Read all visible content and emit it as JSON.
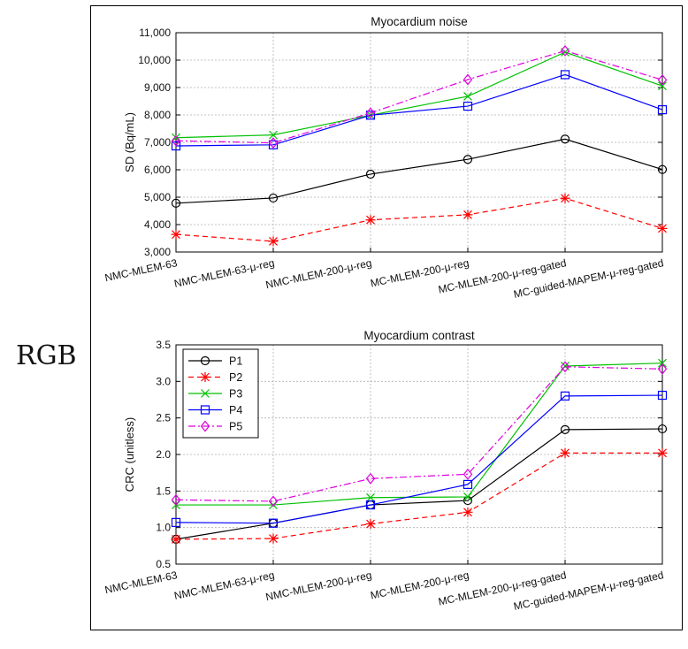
{
  "side_label": "RGB",
  "chart_data": [
    {
      "type": "line",
      "title": "Myocardium noise",
      "xlabel": "",
      "ylabel": "SD (Bq/mL)",
      "categories": [
        "NMC-MLEM-63",
        "NMC-MLEM-63-μ-reg",
        "NMC-MLEM-200-μ-reg",
        "MC-MLEM-200-μ-reg",
        "MC-MLEM-200-μ-reg-gated",
        "MC-guided-MAPEM-μ-reg-gated"
      ],
      "ylim": [
        3000,
        11000
      ],
      "yticks": [
        3000,
        4000,
        5000,
        6000,
        7000,
        8000,
        9000,
        10000,
        11000
      ],
      "ytick_labels": [
        "3,000",
        "4,000",
        "5,000",
        "6,000",
        "7,000",
        "8,000",
        "9,000",
        "10,000",
        "11,000"
      ],
      "grid": true,
      "legend": "none",
      "series": [
        {
          "name": "P1",
          "values": [
            4780,
            4970,
            5840,
            6380,
            7120,
            6010
          ]
        },
        {
          "name": "P2",
          "values": [
            3640,
            3390,
            4170,
            4360,
            4960,
            3860
          ]
        },
        {
          "name": "P3",
          "values": [
            7170,
            7270,
            7990,
            8680,
            10290,
            9060
          ]
        },
        {
          "name": "P4",
          "values": [
            6870,
            6910,
            7990,
            8320,
            9470,
            8190
          ]
        },
        {
          "name": "P5",
          "values": [
            7060,
            6980,
            8070,
            9290,
            10340,
            9280
          ]
        }
      ]
    },
    {
      "type": "line",
      "title": "Myocardium contrast",
      "xlabel": "",
      "ylabel": "CRC (unitless)",
      "categories": [
        "NMC-MLEM-63",
        "NMC-MLEM-63-μ-reg",
        "NMC-MLEM-200-μ-reg",
        "MC-MLEM-200-μ-reg",
        "MC-MLEM-200-μ-reg-gated",
        "MC-guided-MAPEM-μ-reg-gated"
      ],
      "ylim": [
        0.5,
        3.5
      ],
      "yticks": [
        0.5,
        1.0,
        1.5,
        2.0,
        2.5,
        3.0,
        3.5
      ],
      "ytick_labels": [
        "0.5",
        "1.0",
        "1.5",
        "2.0",
        "2.5",
        "3.0",
        "3.5"
      ],
      "grid": true,
      "legend": "top-left",
      "series": [
        {
          "name": "P1",
          "values": [
            0.84,
            1.06,
            1.31,
            1.37,
            2.34,
            2.35
          ]
        },
        {
          "name": "P2",
          "values": [
            0.84,
            0.85,
            1.05,
            1.21,
            2.02,
            2.02
          ]
        },
        {
          "name": "P3",
          "values": [
            1.31,
            1.31,
            1.41,
            1.42,
            3.21,
            3.25
          ]
        },
        {
          "name": "P4",
          "values": [
            1.07,
            1.06,
            1.31,
            1.59,
            2.8,
            2.81
          ]
        },
        {
          "name": "P5",
          "values": [
            1.38,
            1.36,
            1.67,
            1.73,
            3.2,
            3.17
          ]
        }
      ]
    }
  ],
  "series_styles": [
    {
      "name": "P1",
      "color": "#000000",
      "dash": "none",
      "marker": "circle"
    },
    {
      "name": "P2",
      "color": "#ff0000",
      "dash": "6,4",
      "marker": "asterisk"
    },
    {
      "name": "P3",
      "color": "#00c000",
      "dash": "none",
      "marker": "x"
    },
    {
      "name": "P4",
      "color": "#0000ff",
      "dash": "none",
      "marker": "square"
    },
    {
      "name": "P5",
      "color": "#e000e0",
      "dash": "8,3,2,3",
      "marker": "diamond"
    }
  ]
}
